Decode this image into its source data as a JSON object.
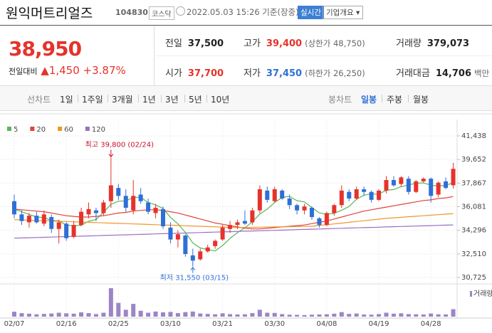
{
  "header": {
    "name": "원익머트리얼즈",
    "code": "104830",
    "market": "코스닥",
    "date": "2022.05.03 15:26 기준(장중)",
    "realtime": "실시간",
    "company_button": "기업개요"
  },
  "quote": {
    "price": "38,950",
    "change_label": "전일대비",
    "change": "1,450",
    "rate": "+3.87%"
  },
  "quote_table": {
    "rows": [
      [
        {
          "label": "전일",
          "value": "37,500"
        },
        {
          "label": "고가",
          "value": "39,400",
          "note": "(상한가 48,750)"
        },
        {
          "label": "거래량",
          "value": "379,073"
        }
      ],
      [
        {
          "label": "시가",
          "value": "37,700"
        },
        {
          "label": "저가",
          "value": "37,450",
          "note": "(하한가 26,250)"
        },
        {
          "label": "거래대금",
          "value": "14,706",
          "unit": "백만"
        }
      ]
    ]
  },
  "tabs": {
    "line_label": "선차트",
    "line_tabs": [
      "1일",
      "1주일",
      "3개월",
      "1년",
      "3년",
      "5년",
      "10년"
    ],
    "candle_label": "봉차트",
    "candle_tabs": [
      "일봉",
      "주봉",
      "월봉"
    ]
  },
  "chart_data": {
    "type": "candlestick",
    "categories": [
      "02/07",
      null,
      null,
      null,
      null,
      null,
      null,
      "02/16",
      null,
      null,
      null,
      null,
      null,
      null,
      "02/25",
      null,
      null,
      null,
      null,
      null,
      null,
      "03/10",
      null,
      null,
      null,
      null,
      null,
      null,
      "03/21",
      null,
      null,
      null,
      null,
      null,
      null,
      "03/30",
      null,
      null,
      null,
      null,
      null,
      null,
      "04/08",
      null,
      null,
      null,
      null,
      null,
      null,
      "04/19",
      null,
      null,
      null,
      null,
      null,
      null,
      "04/28",
      null,
      null,
      null
    ],
    "open": [
      36500,
      35500,
      34900,
      35400,
      34800,
      35300,
      34400,
      34800,
      33800,
      34700,
      35500,
      35800,
      35600,
      36500,
      37500,
      36900,
      35800,
      37000,
      36400,
      35600,
      35900,
      34500,
      33600,
      33900,
      32400,
      32100,
      32700,
      33100,
      33600,
      34400,
      34700,
      35000,
      34900,
      35800,
      37300,
      36500,
      37300,
      36700,
      36200,
      35800,
      36000,
      35200,
      34700,
      35600,
      36200,
      37200,
      36700,
      37400,
      37200,
      36600,
      37300,
      38100,
      37800,
      38200,
      37200,
      38000,
      38200,
      37000,
      38000,
      37700
    ],
    "high": [
      37000,
      35800,
      35600,
      35700,
      35800,
      35500,
      35100,
      34900,
      35000,
      36000,
      36400,
      36000,
      36600,
      39800,
      37800,
      37400,
      38100,
      37500,
      36700,
      36300,
      36100,
      34900,
      34300,
      34000,
      32900,
      32900,
      33200,
      33600,
      34700,
      35000,
      35100,
      35800,
      36000,
      37700,
      37600,
      37600,
      37400,
      37000,
      36300,
      36300,
      36100,
      35300,
      35700,
      36300,
      37700,
      37400,
      37600,
      37600,
      37300,
      37400,
      38400,
      38400,
      38400,
      38400,
      38100,
      38300,
      38300,
      38000,
      38300,
      39400
    ],
    "low": [
      35200,
      34700,
      34500,
      34800,
      34600,
      34100,
      33300,
      33500,
      33700,
      34600,
      35200,
      35000,
      35400,
      36000,
      36600,
      35700,
      35500,
      36300,
      35500,
      35200,
      34400,
      33300,
      33000,
      32300,
      31550,
      32000,
      32600,
      32900,
      33500,
      34100,
      34400,
      34700,
      34700,
      35600,
      36400,
      36400,
      36600,
      35900,
      35500,
      35500,
      35100,
      34500,
      34600,
      35400,
      36000,
      36500,
      36600,
      36900,
      36400,
      36500,
      37100,
      37600,
      37600,
      37000,
      37100,
      37900,
      36400,
      36800,
      37400,
      37450
    ],
    "close": [
      35500,
      35000,
      35400,
      34900,
      35500,
      34400,
      34900,
      33700,
      34700,
      35700,
      35900,
      35600,
      36400,
      37700,
      36900,
      36000,
      36900,
      36500,
      35700,
      36000,
      34600,
      33600,
      34000,
      32500,
      32000,
      32700,
      33000,
      33500,
      34500,
      34700,
      34900,
      34800,
      35800,
      37400,
      36600,
      37400,
      36700,
      36200,
      35800,
      36100,
      35300,
      34700,
      35600,
      36200,
      37300,
      36700,
      37400,
      37200,
      36600,
      37300,
      38100,
      37700,
      38300,
      37200,
      38000,
      38200,
      36900,
      37900,
      37500,
      38950
    ],
    "volume": [
      250000,
      180000,
      150000,
      120000,
      140000,
      160000,
      200000,
      170000,
      150000,
      220000,
      180000,
      130000,
      200000,
      1450000,
      700000,
      350000,
      650000,
      300000,
      200000,
      260000,
      220000,
      240000,
      180000,
      230000,
      260000,
      160000,
      140000,
      120000,
      170000,
      130000,
      110000,
      120000,
      180000,
      350000,
      200000,
      190000,
      130000,
      100000,
      90000,
      80000,
      100000,
      110000,
      120000,
      150000,
      230000,
      140000,
      160000,
      110000,
      100000,
      130000,
      200000,
      150000,
      170000,
      130000,
      120000,
      110000,
      160000,
      120000,
      110000,
      379073
    ],
    "volume_label": "거래량",
    "volume_color": "#9c85c6",
    "up_color": "#e5332b",
    "down_color": "#2f6fd6",
    "series": [
      {
        "name": "5",
        "color": "#5bb55b",
        "values": [
          35900,
          35700,
          35500,
          35300,
          35260,
          35040,
          35020,
          34680,
          34640,
          34680,
          34980,
          35120,
          35660,
          36260,
          36500,
          36520,
          36780,
          36800,
          36400,
          36220,
          35940,
          35280,
          34780,
          34140,
          33340,
          32960,
          32840,
          32740,
          33140,
          33680,
          34120,
          34480,
          34940,
          35520,
          35900,
          36400,
          36780,
          36860,
          36540,
          36440,
          36020,
          35620,
          35500,
          35580,
          35820,
          36100,
          36640,
          36960,
          37040,
          37040,
          37320,
          37380,
          37600,
          37720,
          37860,
          37880,
          37720,
          37640,
          37700,
          37890
        ]
      },
      {
        "name": "20",
        "color": "#e0433a",
        "values": [
          35900,
          35850,
          35800,
          35750,
          35700,
          35600,
          35500,
          35400,
          35350,
          35300,
          35300,
          35350,
          35400,
          35500,
          35600,
          35650,
          35750,
          35800,
          35850,
          35850,
          35800,
          35700,
          35600,
          35450,
          35300,
          35150,
          35000,
          34850,
          34750,
          34650,
          34550,
          34450,
          34400,
          34400,
          34450,
          34500,
          34550,
          34600,
          34650,
          34700,
          34800,
          34900,
          35000,
          35150,
          35300,
          35450,
          35600,
          35750,
          35850,
          35950,
          36050,
          36150,
          36250,
          36350,
          36450,
          36550,
          36600,
          36700,
          36750,
          36850
        ]
      },
      {
        "name": "60",
        "color": "#f0962a",
        "values": [
          35100,
          35080,
          35060,
          35040,
          35020,
          35000,
          34980,
          34960,
          34940,
          34920,
          34900,
          34880,
          34860,
          34840,
          34820,
          34800,
          34780,
          34760,
          34740,
          34720,
          34700,
          34680,
          34660,
          34640,
          34620,
          34600,
          34580,
          34560,
          34540,
          34520,
          34500,
          34510,
          34520,
          34530,
          34540,
          34550,
          34560,
          34570,
          34580,
          34590,
          34600,
          34660,
          34720,
          34780,
          34840,
          34900,
          34960,
          35020,
          35080,
          35140,
          35200,
          35240,
          35280,
          35320,
          35360,
          35400,
          35440,
          35480,
          35520,
          35560
        ]
      },
      {
        "name": "120",
        "color": "#9a6fc6",
        "values": [
          33700,
          33717,
          33734,
          33751,
          33768,
          33785,
          33802,
          33819,
          33836,
          33853,
          33870,
          33887,
          33904,
          33921,
          33938,
          33955,
          33972,
          33989,
          34006,
          34023,
          34040,
          34057,
          34074,
          34091,
          34108,
          34125,
          34142,
          34159,
          34176,
          34193,
          34210,
          34227,
          34244,
          34261,
          34278,
          34295,
          34312,
          34329,
          34346,
          34363,
          34380,
          34397,
          34414,
          34431,
          34448,
          34465,
          34482,
          34499,
          34516,
          34533,
          34550,
          34567,
          34584,
          34601,
          34618,
          34635,
          34652,
          34669,
          34686,
          34703
        ]
      }
    ],
    "ylim": [
      30725,
      41438
    ],
    "yticks": [
      {
        "value": 41438,
        "label": "41,438"
      },
      {
        "value": 39652,
        "label": "39,652"
      },
      {
        "value": 37867,
        "label": "37,867"
      },
      {
        "value": 36081,
        "label": "36,081"
      },
      {
        "value": 34296,
        "label": "34,296"
      },
      {
        "value": 32510,
        "label": "32,510"
      },
      {
        "value": 30725,
        "label": "30,725"
      }
    ],
    "grid": true,
    "annotations": [
      {
        "kind": "high",
        "text": "최고 39,800 (02/24)",
        "color": "#c8102e"
      },
      {
        "kind": "low",
        "text": "최저 31,550 (03/15)",
        "color": "#2f6fd6"
      }
    ]
  }
}
